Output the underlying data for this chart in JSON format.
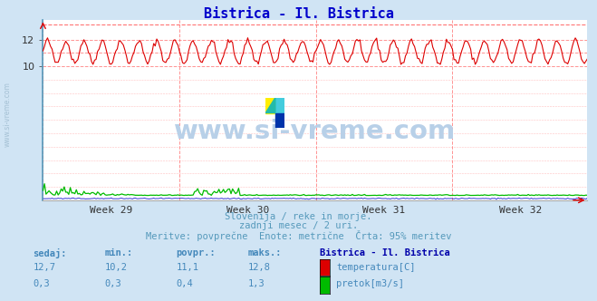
{
  "title": "Bistrica - Il. Bistrica",
  "title_color": "#0000cc",
  "bg_color": "#d0e4f4",
  "plot_bg_color": "#ffffff",
  "grid_color": "#ffcccc",
  "xlabel_weeks": [
    "Week 29",
    "Week 30",
    "Week 31",
    "Week 32"
  ],
  "ylim": [
    0,
    13.5
  ],
  "yticks": [
    10,
    12
  ],
  "temp_min": 10.2,
  "temp_max": 12.8,
  "temp_avg": 11.1,
  "temp_color": "#dd0000",
  "flow_color": "#00bb00",
  "height_color": "#0000cc",
  "dashed_line_color": "#ff6666",
  "n_points": 360,
  "temp_base": 11.1,
  "temp_amplitude": 0.85,
  "temp_period": 12,
  "subtitle1": "Slovenija / reke in morje.",
  "subtitle2": "zadnji mesec / 2 uri.",
  "subtitle3": "Meritve: povprečne  Enote: metrične  Črta: 95% meritev",
  "subtitle_color": "#5599bb",
  "table_header": [
    "sedaj:",
    "min.:",
    "povpr.:",
    "maks.:",
    "Bistrica - Il. Bistrica"
  ],
  "table_row1": [
    "12,7",
    "10,2",
    "11,1",
    "12,8",
    "temperatura[C]"
  ],
  "table_row2": [
    "0,3",
    "0,3",
    "0,4",
    "1,3",
    "pretok[m3/s]"
  ],
  "table_color": "#4488bb",
  "table_bold_color": "#0000aa",
  "watermark": "www.si-vreme.com",
  "watermark_color": "#b8d0e8",
  "vreme_text_color": "#4488bb"
}
